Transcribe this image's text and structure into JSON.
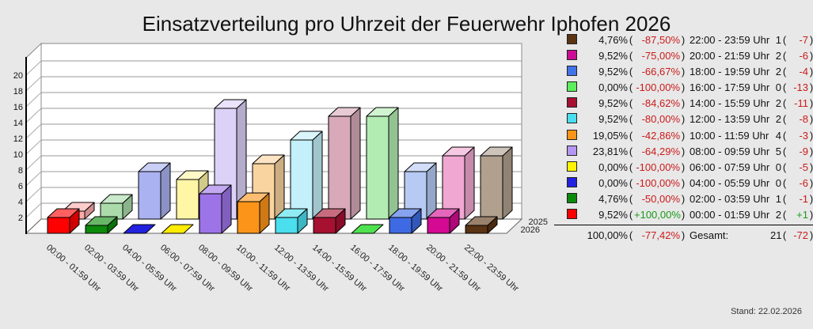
{
  "page": {
    "background": "#E8E8E8",
    "title": "Einsatzverteilung pro Uhrzeit der Feuerwehr Iphofen 2026",
    "stand": "Stand: 22.02.2026"
  },
  "chart_data": {
    "type": "bar",
    "style": "3d-columns",
    "title": "Einsatzverteilung pro Uhrzeit der Feuerwehr Iphofen 2026",
    "categories": [
      "00:00 - 01:59 Uhr",
      "02:00 - 03:59 Uhr",
      "04:00 - 05:59 Uhr",
      "06:00 - 07:59 Uhr",
      "08:00 - 09:59 Uhr",
      "10:00 - 11:59 Uhr",
      "12:00 - 13:59 Uhr",
      "14:00 - 15:59 Uhr",
      "16:00 - 17:59 Uhr",
      "18:00 - 19:59 Uhr",
      "20:00 - 21:59 Uhr",
      "22:00 - 23:59 Uhr"
    ],
    "series": [
      {
        "name": "2025",
        "values": [
          1,
          2,
          6,
          5,
          14,
          7,
          10,
          13,
          13,
          6,
          8,
          8
        ],
        "colors": [
          "#FFACAC",
          "#ABDBAB",
          "#AAB2F1",
          "#FFF6A6",
          "#DCD2F8",
          "#FAD4A0",
          "#C3F0FA",
          "#D8A9B9",
          "#B3ECB3",
          "#B6CAF4",
          "#F0A8D2",
          "#B1A08E"
        ]
      },
      {
        "name": "2026",
        "values": [
          2,
          1,
          0,
          0,
          5,
          4,
          2,
          2,
          0,
          2,
          2,
          1
        ],
        "colors": [
          "#FF0000",
          "#0B8A0B",
          "#2121DE",
          "#FFEC00",
          "#9D74E8",
          "#FB9418",
          "#4ADEEE",
          "#A61031",
          "#4FE24F",
          "#3E6BE4",
          "#D40A93",
          "#5A3312"
        ]
      }
    ],
    "ylim": [
      0,
      22
    ],
    "yticks": [
      2,
      4,
      6,
      8,
      10,
      12,
      14,
      16,
      18,
      20
    ],
    "depth_labels": [
      "2025",
      "2026"
    ],
    "grid": true,
    "legend_position": "right"
  },
  "legend": {
    "paren_open": "(",
    "paren_close": ")",
    "negative_color": "#CC1A1A",
    "positive_color": "#189A18",
    "rows": [
      {
        "swatch": "#5A3312",
        "pct": "4,76%",
        "chg": "-87,50%",
        "sign": "neg",
        "time": "22:00 - 23:59 Uhr",
        "count": "1",
        "diff": "-7",
        "diff_sign": "neg"
      },
      {
        "swatch": "#CC0D93",
        "pct": "9,52%",
        "chg": "-75,00%",
        "sign": "neg",
        "time": "20:00 - 21:59 Uhr",
        "count": "2",
        "diff": "-6",
        "diff_sign": "neg"
      },
      {
        "swatch": "#4273E8",
        "pct": "9,52%",
        "chg": "-66,67%",
        "sign": "neg",
        "time": "18:00 - 19:59 Uhr",
        "count": "2",
        "diff": "-4",
        "diff_sign": "neg"
      },
      {
        "swatch": "#5CEE5C",
        "pct": "0,00%",
        "chg": "-100,00%",
        "sign": "neg",
        "time": "16:00 - 17:59 Uhr",
        "count": "0",
        "diff": "-13",
        "diff_sign": "neg"
      },
      {
        "swatch": "#A61031",
        "pct": "9,52%",
        "chg": "-84,62%",
        "sign": "neg",
        "time": "14:00 - 15:59 Uhr",
        "count": "2",
        "diff": "-11",
        "diff_sign": "neg"
      },
      {
        "swatch": "#4ADEEE",
        "pct": "9,52%",
        "chg": "-80,00%",
        "sign": "neg",
        "time": "12:00 - 13:59 Uhr",
        "count": "2",
        "diff": "-8",
        "diff_sign": "neg"
      },
      {
        "swatch": "#FB9418",
        "pct": "19,05%",
        "chg": "-42,86%",
        "sign": "neg",
        "time": "10:00 - 11:59 Uhr",
        "count": "4",
        "diff": "-3",
        "diff_sign": "neg"
      },
      {
        "swatch": "#B497F3",
        "pct": "23,81%",
        "chg": "-64,29%",
        "sign": "neg",
        "time": "08:00 - 09:59 Uhr",
        "count": "5",
        "diff": "-9",
        "diff_sign": "neg"
      },
      {
        "swatch": "#FFF500",
        "pct": "0,00%",
        "chg": "-100,00%",
        "sign": "neg",
        "time": "06:00 - 07:59 Uhr",
        "count": "0",
        "diff": "-5",
        "diff_sign": "neg"
      },
      {
        "swatch": "#2121DE",
        "pct": "0,00%",
        "chg": "-100,00%",
        "sign": "neg",
        "time": "04:00 - 05:59 Uhr",
        "count": "0",
        "diff": "-6",
        "diff_sign": "neg"
      },
      {
        "swatch": "#0B8A0B",
        "pct": "4,76%",
        "chg": "-50,00%",
        "sign": "neg",
        "time": "02:00 - 03:59 Uhr",
        "count": "1",
        "diff": "-1",
        "diff_sign": "neg"
      },
      {
        "swatch": "#FF0000",
        "pct": "9,52%",
        "chg": "+100,00%",
        "sign": "pos",
        "time": "00:00 - 01:59 Uhr",
        "count": "2",
        "diff": "+1",
        "diff_sign": "pos"
      }
    ],
    "total": {
      "pct": "100,00%",
      "chg": "-77,42%",
      "sign": "neg",
      "label": "Gesamt:",
      "count": "21",
      "diff": "-72",
      "diff_sign": "neg"
    }
  }
}
